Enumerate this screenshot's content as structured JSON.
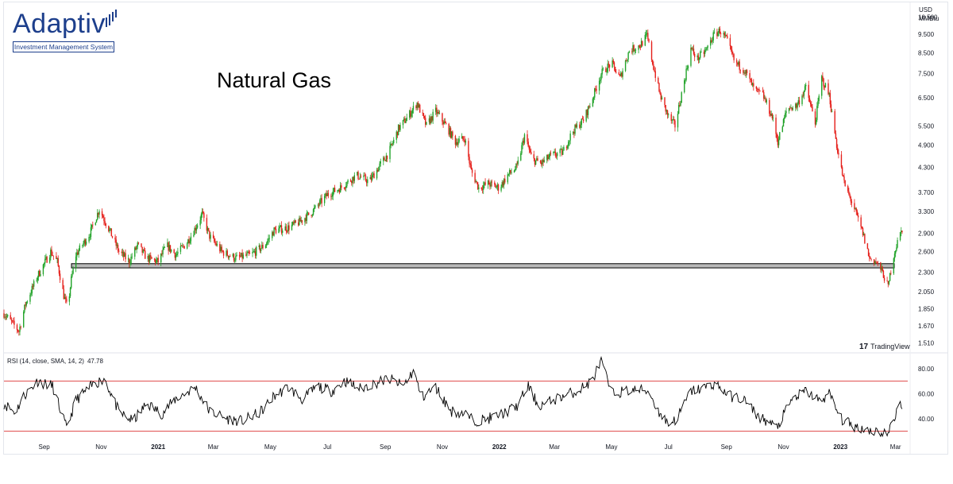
{
  "brand": {
    "name": "Adaptiv",
    "tagline": "Investment Management System",
    "color": "#1d3f8c"
  },
  "watermark": "TradingView",
  "units": {
    "currency": "USD",
    "measure": "MMBtu"
  },
  "colors": {
    "up": "#22a32a",
    "down": "#e5201b",
    "rsi_line": "#000000",
    "rsi_bands": "#e05050",
    "support_band": "#b9b9b9"
  },
  "chart_data": [
    {
      "type": "candlestick",
      "title": "Natural Gas",
      "xlabel": "",
      "ylabel": "",
      "y_scale": "log",
      "ylim": [
        1.45,
        11.2
      ],
      "y_ticks": [
        "10.500",
        "9.500",
        "8.500",
        "7.500",
        "6.500",
        "5.500",
        "4.900",
        "4.300",
        "3.700",
        "3.300",
        "2.900",
        "2.600",
        "2.300",
        "2.050",
        "1.850",
        "1.670",
        "1.510"
      ],
      "x_range": [
        "2020-07-20",
        "2023-03-14"
      ],
      "x_ticks": [
        "Sep",
        "Nov",
        "2021",
        "Mar",
        "May",
        "Jul",
        "Sep",
        "Nov",
        "2022",
        "Mar",
        "May",
        "Jul",
        "Sep",
        "Nov",
        "2023",
        "Mar"
      ],
      "grid": false,
      "support_band": [
        2.36,
        2.42
      ],
      "path": [
        [
          "2020-07-20",
          1.8
        ],
        [
          "2020-07-27",
          1.72
        ],
        [
          "2020-08-05",
          1.62
        ],
        [
          "2020-08-12",
          1.9
        ],
        [
          "2020-08-25",
          2.25
        ],
        [
          "2020-09-08",
          2.6
        ],
        [
          "2020-09-15",
          2.45
        ],
        [
          "2020-09-22",
          2.0
        ],
        [
          "2020-09-26",
          1.85
        ],
        [
          "2020-09-30",
          2.2
        ],
        [
          "2020-10-05",
          2.55
        ],
        [
          "2020-10-20",
          2.9
        ],
        [
          "2020-10-30",
          3.35
        ],
        [
          "2020-11-10",
          2.95
        ],
        [
          "2020-11-20",
          2.6
        ],
        [
          "2020-12-01",
          2.45
        ],
        [
          "2020-12-10",
          2.7
        ],
        [
          "2020-12-20",
          2.5
        ],
        [
          "2021-01-01",
          2.45
        ],
        [
          "2021-01-10",
          2.7
        ],
        [
          "2021-01-20",
          2.55
        ],
        [
          "2021-02-01",
          2.75
        ],
        [
          "2021-02-10",
          3.0
        ],
        [
          "2021-02-17",
          3.25
        ],
        [
          "2021-02-25",
          2.85
        ],
        [
          "2021-03-10",
          2.6
        ],
        [
          "2021-03-25",
          2.5
        ],
        [
          "2021-04-10",
          2.55
        ],
        [
          "2021-04-25",
          2.7
        ],
        [
          "2021-05-05",
          2.95
        ],
        [
          "2021-05-20",
          3.0
        ],
        [
          "2021-06-01",
          3.1
        ],
        [
          "2021-06-15",
          3.3
        ],
        [
          "2021-07-01",
          3.65
        ],
        [
          "2021-07-15",
          3.8
        ],
        [
          "2021-08-01",
          4.1
        ],
        [
          "2021-08-15",
          3.95
        ],
        [
          "2021-08-25",
          4.3
        ],
        [
          "2021-09-05",
          4.7
        ],
        [
          "2021-09-15",
          5.4
        ],
        [
          "2021-09-25",
          5.8
        ],
        [
          "2021-10-05",
          6.3
        ],
        [
          "2021-10-15",
          5.5
        ],
        [
          "2021-10-25",
          6.0
        ],
        [
          "2021-11-05",
          5.5
        ],
        [
          "2021-11-15",
          5.0
        ],
        [
          "2021-11-25",
          5.1
        ],
        [
          "2021-12-02",
          4.2
        ],
        [
          "2021-12-10",
          3.8
        ],
        [
          "2021-12-20",
          3.9
        ],
        [
          "2022-01-01",
          3.8
        ],
        [
          "2022-01-10",
          4.1
        ],
        [
          "2022-01-20",
          4.3
        ],
        [
          "2022-01-28",
          5.2
        ],
        [
          "2022-02-05",
          4.5
        ],
        [
          "2022-02-15",
          4.4
        ],
        [
          "2022-02-25",
          4.6
        ],
        [
          "2022-03-10",
          4.7
        ],
        [
          "2022-03-20",
          5.3
        ],
        [
          "2022-04-01",
          5.7
        ],
        [
          "2022-04-10",
          6.4
        ],
        [
          "2022-04-20",
          7.5
        ],
        [
          "2022-05-01",
          8.0
        ],
        [
          "2022-05-10",
          7.3
        ],
        [
          "2022-05-20",
          8.6
        ],
        [
          "2022-06-01",
          8.9
        ],
        [
          "2022-06-08",
          9.4
        ],
        [
          "2022-06-15",
          7.8
        ],
        [
          "2022-06-22",
          6.6
        ],
        [
          "2022-07-01",
          5.8
        ],
        [
          "2022-07-08",
          5.5
        ],
        [
          "2022-07-18",
          7.2
        ],
        [
          "2022-07-25",
          8.7
        ],
        [
          "2022-08-01",
          8.2
        ],
        [
          "2022-08-10",
          8.6
        ],
        [
          "2022-08-18",
          9.4
        ],
        [
          "2022-08-25",
          9.7
        ],
        [
          "2022-09-01",
          9.2
        ],
        [
          "2022-09-10",
          8.0
        ],
        [
          "2022-09-20",
          7.7
        ],
        [
          "2022-10-01",
          6.8
        ],
        [
          "2022-10-10",
          6.6
        ],
        [
          "2022-10-20",
          5.8
        ],
        [
          "2022-10-26",
          5.0
        ],
        [
          "2022-11-05",
          6.1
        ],
        [
          "2022-11-15",
          6.2
        ],
        [
          "2022-11-25",
          6.9
        ],
        [
          "2022-12-05",
          5.6
        ],
        [
          "2022-12-12",
          7.3
        ],
        [
          "2022-12-20",
          6.6
        ],
        [
          "2022-12-28",
          4.9
        ],
        [
          "2023-01-05",
          3.9
        ],
        [
          "2023-01-15",
          3.4
        ],
        [
          "2023-01-25",
          2.9
        ],
        [
          "2023-02-01",
          2.5
        ],
        [
          "2023-02-08",
          2.45
        ],
        [
          "2023-02-15",
          2.3
        ],
        [
          "2023-02-21",
          2.1
        ],
        [
          "2023-02-26",
          2.5
        ],
        [
          "2023-03-03",
          2.75
        ],
        [
          "2023-03-08",
          2.98
        ]
      ]
    },
    {
      "type": "line",
      "title": "RSI (14, close, SMA, 14, 2)",
      "last_value": "47.78",
      "series": [
        {
          "values": [
            [
              "2020-07-20",
              52
            ],
            [
              "2020-08-01",
              45
            ],
            [
              "2020-08-10",
              58
            ],
            [
              "2020-08-25",
              70
            ],
            [
              "2020-09-10",
              66
            ],
            [
              "2020-09-25",
              32
            ],
            [
              "2020-10-05",
              55
            ],
            [
              "2020-10-25",
              68
            ],
            [
              "2020-11-05",
              72
            ],
            [
              "2020-11-20",
              45
            ],
            [
              "2020-12-05",
              38
            ],
            [
              "2020-12-20",
              52
            ],
            [
              "2021-01-05",
              44
            ],
            [
              "2021-01-20",
              56
            ],
            [
              "2021-02-10",
              65
            ],
            [
              "2021-02-25",
              46
            ],
            [
              "2021-03-15",
              40
            ],
            [
              "2021-04-01",
              38
            ],
            [
              "2021-04-20",
              45
            ],
            [
              "2021-05-05",
              58
            ],
            [
              "2021-05-20",
              65
            ],
            [
              "2021-06-05",
              55
            ],
            [
              "2021-06-20",
              66
            ],
            [
              "2021-07-05",
              62
            ],
            [
              "2021-07-20",
              70
            ],
            [
              "2021-08-05",
              64
            ],
            [
              "2021-08-20",
              68
            ],
            [
              "2021-09-05",
              72
            ],
            [
              "2021-09-20",
              66
            ],
            [
              "2021-10-01",
              78
            ],
            [
              "2021-10-10",
              57
            ],
            [
              "2021-10-25",
              65
            ],
            [
              "2021-11-10",
              46
            ],
            [
              "2021-11-25",
              44
            ],
            [
              "2021-12-05",
              38
            ],
            [
              "2021-12-20",
              40
            ],
            [
              "2022-01-05",
              44
            ],
            [
              "2022-01-20",
              50
            ],
            [
              "2022-02-01",
              66
            ],
            [
              "2022-02-12",
              50
            ],
            [
              "2022-02-25",
              54
            ],
            [
              "2022-03-10",
              58
            ],
            [
              "2022-03-25",
              62
            ],
            [
              "2022-04-10",
              70
            ],
            [
              "2022-04-20",
              86
            ],
            [
              "2022-05-01",
              60
            ],
            [
              "2022-05-15",
              62
            ],
            [
              "2022-05-30",
              63
            ],
            [
              "2022-06-10",
              62
            ],
            [
              "2022-06-20",
              46
            ],
            [
              "2022-07-01",
              36
            ],
            [
              "2022-07-10",
              40
            ],
            [
              "2022-07-25",
              62
            ],
            [
              "2022-08-05",
              64
            ],
            [
              "2022-08-20",
              68
            ],
            [
              "2022-09-05",
              58
            ],
            [
              "2022-09-20",
              55
            ],
            [
              "2022-10-05",
              42
            ],
            [
              "2022-10-25",
              33
            ],
            [
              "2022-11-10",
              55
            ],
            [
              "2022-11-25",
              62
            ],
            [
              "2022-12-10",
              54
            ],
            [
              "2022-12-20",
              60
            ],
            [
              "2023-01-01",
              40
            ],
            [
              "2023-01-15",
              34
            ],
            [
              "2023-02-01",
              31
            ],
            [
              "2023-02-21",
              28
            ],
            [
              "2023-03-01",
              43
            ],
            [
              "2023-03-06",
              57
            ],
            [
              "2023-03-08",
              47.78
            ]
          ]
        }
      ],
      "ylim": [
        24,
        90
      ],
      "y_ticks": [
        "80.00",
        "60.00",
        "40.00"
      ],
      "bands": [
        70,
        30
      ]
    }
  ]
}
